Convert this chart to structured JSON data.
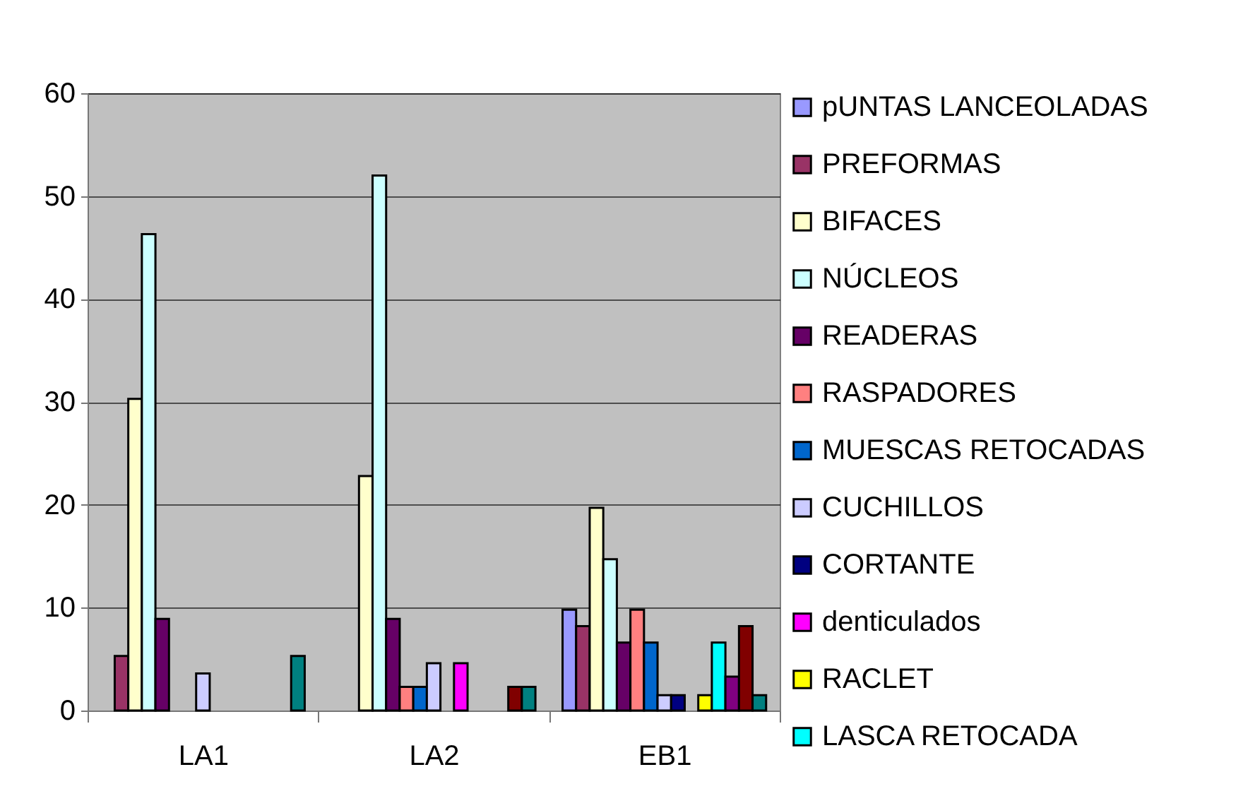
{
  "chart_data": {
    "type": "bar",
    "categories": [
      "LA1",
      "LA2",
      "EB1"
    ],
    "ylim": [
      0,
      60
    ],
    "yticks": [
      0,
      10,
      20,
      30,
      40,
      50,
      60
    ],
    "grid": "y",
    "legend": "right",
    "series": [
      {
        "name": "pUNTAS LANCEOLADAS",
        "color": "#9999ff",
        "values": [
          null,
          null,
          9.8
        ]
      },
      {
        "name": "PREFORMAS",
        "color": "#993366",
        "values": [
          5.3,
          null,
          8.2
        ]
      },
      {
        "name": "BIFACES",
        "color": "#ffffcc",
        "values": [
          30.3,
          22.8,
          19.7
        ]
      },
      {
        "name": "NÚCLEOS",
        "color": "#ccffff",
        "values": [
          46.3,
          52,
          14.7
        ]
      },
      {
        "name": "READERAS",
        "color": "#660066",
        "values": [
          8.9,
          8.9,
          6.6
        ]
      },
      {
        "name": "RASPADORES",
        "color": "#ff8080",
        "values": [
          null,
          2.3,
          9.8
        ]
      },
      {
        "name": "MUESCAS RETOCADAS",
        "color": "#0066cc",
        "values": [
          null,
          2.3,
          6.6
        ]
      },
      {
        "name": "CUCHILLOS",
        "color": "#ccccff",
        "values": [
          3.6,
          4.6,
          1.5
        ]
      },
      {
        "name": "CORTANTE",
        "color": "#000080",
        "values": [
          null,
          null,
          1.5
        ]
      },
      {
        "name": "denticulados",
        "color": "#ff00ff",
        "values": [
          null,
          4.6,
          null
        ]
      },
      {
        "name": "RACLET",
        "color": "#ffff00",
        "values": [
          null,
          null,
          1.5
        ]
      },
      {
        "name": "LASCA RETOCADA",
        "color": "#00ffff",
        "values": [
          null,
          null,
          6.6
        ]
      },
      {
        "color": "#800080",
        "values": [
          null,
          null,
          3.3
        ]
      },
      {
        "color": "#800000",
        "values": [
          null,
          2.3,
          8.2
        ]
      },
      {
        "color": "#008080",
        "values": [
          5.3,
          2.3,
          1.5
        ]
      }
    ]
  }
}
